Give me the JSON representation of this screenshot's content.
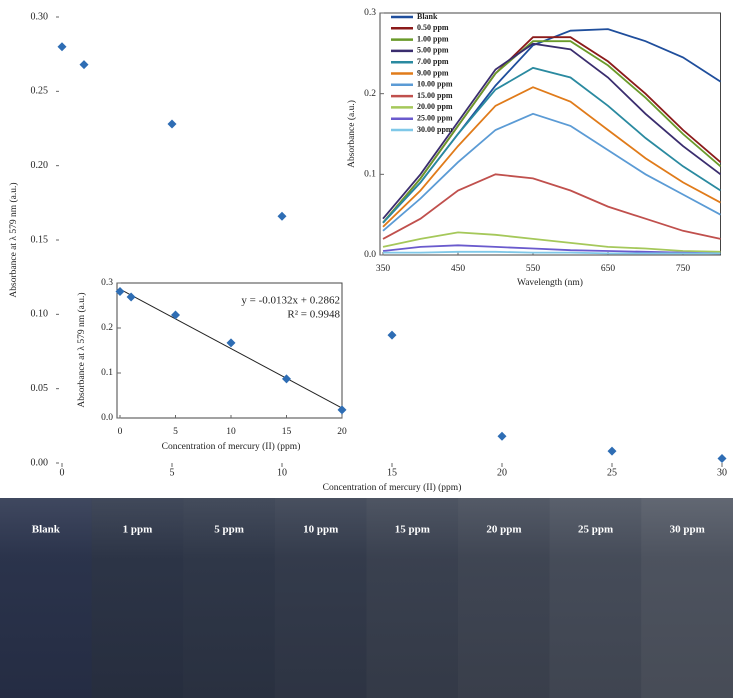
{
  "chart_data": [
    {
      "type": "scatter",
      "x": [
        0,
        1,
        5,
        10,
        15,
        20,
        25,
        30
      ],
      "values": [
        0.28,
        0.268,
        0.228,
        0.166,
        0.086,
        0.018,
        0.008,
        0.003
      ],
      "color": "#2e6db4",
      "xlim": [
        0,
        30
      ],
      "xticks": [
        0,
        5,
        10,
        15,
        20,
        25,
        30
      ],
      "ylim": [
        0,
        0.3
      ],
      "yticks": [
        {
          "value": 0,
          "label": "0.00"
        },
        0.05,
        {
          "value": 0.1,
          "label": "0.10"
        },
        0.15,
        {
          "value": 0.2,
          "label": "0.20"
        },
        0.25,
        {
          "value": 0.3,
          "label": "0.30"
        }
      ],
      "xlabel": "Concentration of mercury (II) (ppm)",
      "ylabel": "Absorbance at λ 579 nm (a.u.)"
    },
    {
      "type": "line",
      "x": [
        350,
        400,
        450,
        500,
        550,
        600,
        650,
        700,
        750,
        800
      ],
      "series": [
        {
          "name": "Blank",
          "color": "#1f4e9c",
          "values": [
            0.04,
            0.09,
            0.15,
            0.21,
            0.26,
            0.278,
            0.28,
            0.265,
            0.245,
            0.215
          ]
        },
        {
          "name": "0.50 ppm",
          "color": "#8b1a1a",
          "values": [
            0.04,
            0.095,
            0.16,
            0.225,
            0.27,
            0.27,
            0.24,
            0.2,
            0.155,
            0.115
          ]
        },
        {
          "name": "1.00 ppm",
          "color": "#6a9a2a",
          "values": [
            0.04,
            0.095,
            0.16,
            0.225,
            0.265,
            0.265,
            0.235,
            0.195,
            0.15,
            0.11
          ]
        },
        {
          "name": "5.00 ppm",
          "color": "#3a2d6e",
          "values": [
            0.045,
            0.1,
            0.165,
            0.23,
            0.262,
            0.255,
            0.22,
            0.175,
            0.135,
            0.1
          ]
        },
        {
          "name": "7.00 ppm",
          "color": "#2a8aa0",
          "values": [
            0.04,
            0.09,
            0.15,
            0.205,
            0.232,
            0.22,
            0.185,
            0.145,
            0.11,
            0.08
          ]
        },
        {
          "name": "9.00 ppm",
          "color": "#e07b1a",
          "values": [
            0.035,
            0.08,
            0.135,
            0.185,
            0.208,
            0.19,
            0.155,
            0.12,
            0.09,
            0.065
          ]
        },
        {
          "name": "10.00 ppm",
          "color": "#5b9bd5",
          "values": [
            0.03,
            0.07,
            0.115,
            0.155,
            0.175,
            0.16,
            0.13,
            0.1,
            0.075,
            0.05
          ]
        },
        {
          "name": "15.00 ppm",
          "color": "#c0504d",
          "values": [
            0.02,
            0.045,
            0.08,
            0.1,
            0.095,
            0.08,
            0.06,
            0.045,
            0.03,
            0.02
          ]
        },
        {
          "name": "20.00 ppm",
          "color": "#a5c85a",
          "values": [
            0.01,
            0.02,
            0.028,
            0.025,
            0.02,
            0.015,
            0.01,
            0.008,
            0.005,
            0.004
          ]
        },
        {
          "name": "25.00 ppm",
          "color": "#6a5acd",
          "values": [
            0.005,
            0.01,
            0.012,
            0.01,
            0.008,
            0.006,
            0.005,
            0.004,
            0.003,
            0.002
          ]
        },
        {
          "name": "30.00 ppm",
          "color": "#7fc8e8",
          "values": [
            0.003,
            0.003,
            0.004,
            0.004,
            0.003,
            0.003,
            0.002,
            0.002,
            0.002,
            0.002
          ]
        }
      ],
      "legend": "upper left",
      "xlim": [
        350,
        800
      ],
      "xticks": [
        350,
        450,
        550,
        650,
        750
      ],
      "ylim": [
        0,
        0.3
      ],
      "yticks": [
        {
          "value": 0,
          "label": "0.0"
        },
        0.1,
        0.2,
        0.3
      ],
      "xlabel": "Wavelength (nm)",
      "ylabel": "Absorbance (a.u.)"
    },
    {
      "type": "scatter",
      "x": [
        0,
        1,
        5,
        10,
        15,
        20
      ],
      "values": [
        0.281,
        0.269,
        0.229,
        0.167,
        0.087,
        0.018
      ],
      "color": "#2e6db4",
      "trendline": {
        "slope": -0.0132,
        "intercept": 0.2862
      },
      "annotations": [
        "y = -0.0132x + 0.2862",
        "R² = 0.9948"
      ],
      "xlim": [
        0,
        20
      ],
      "xticks": [
        0,
        5,
        10,
        15,
        20
      ],
      "ylim": [
        0,
        0.3
      ],
      "yticks": [
        {
          "value": 0,
          "label": "0.0"
        },
        0.1,
        0.2,
        0.3
      ],
      "xlabel": "Concentration of mercury (II) (ppm)",
      "ylabel": "Absorbance at λ 579 nm (a.u.)"
    }
  ],
  "photo": {
    "labels": [
      "Blank",
      "1 ppm",
      "5 ppm",
      "10 ppm",
      "15 ppm",
      "20 ppm",
      "25 ppm",
      "30 ppm"
    ]
  }
}
